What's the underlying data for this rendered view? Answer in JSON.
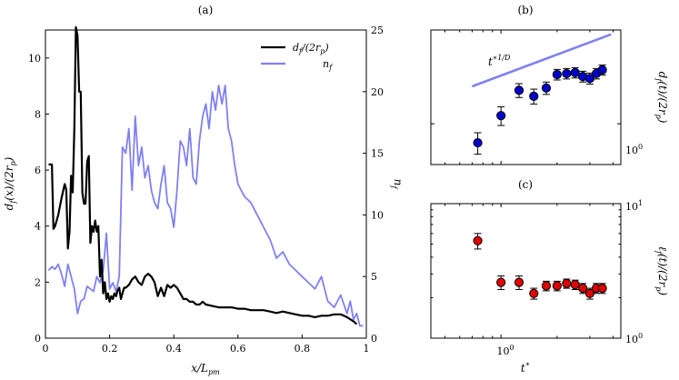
{
  "chart_data": [
    {
      "panel": "(a)",
      "type": "line",
      "xlabel": "x/L_pm",
      "ylabel": "d_f(x)/(2r_p)",
      "ylabel2": "n_f",
      "xlim": [
        0,
        1
      ],
      "ylim": [
        0,
        11
      ],
      "ylim2": [
        0,
        25
      ],
      "xticks": [
        0,
        0.2,
        0.4,
        0.6,
        0.8,
        1
      ],
      "xtick_labels": [
        "0",
        "0.2",
        "0.4",
        "0.6",
        "0.8",
        "1"
      ],
      "yticks": [
        0,
        2,
        4,
        6,
        8,
        10
      ],
      "ytick_labels": [
        "0",
        "2",
        "4",
        "6",
        "8",
        "10"
      ],
      "yticks2": [
        0,
        5,
        10,
        15,
        20,
        25
      ],
      "ytick2_labels": [
        "0",
        "5",
        "10",
        "15",
        "20",
        "25"
      ],
      "legend_position": "top-right",
      "series": [
        {
          "name": "d_f/(2r_p)",
          "axis": "left",
          "color": "#000000",
          "x": [
            0.01,
            0.02,
            0.025,
            0.03,
            0.04,
            0.05,
            0.06,
            0.065,
            0.07,
            0.075,
            0.08,
            0.085,
            0.09,
            0.095,
            0.1,
            0.105,
            0.11,
            0.115,
            0.12,
            0.125,
            0.13,
            0.135,
            0.14,
            0.145,
            0.15,
            0.155,
            0.16,
            0.165,
            0.17,
            0.175,
            0.18,
            0.185,
            0.19,
            0.195,
            0.2,
            0.205,
            0.21,
            0.215,
            0.22,
            0.225,
            0.23,
            0.235,
            0.24,
            0.245,
            0.25,
            0.26,
            0.27,
            0.28,
            0.29,
            0.3,
            0.31,
            0.32,
            0.33,
            0.34,
            0.35,
            0.36,
            0.37,
            0.38,
            0.39,
            0.4,
            0.41,
            0.42,
            0.43,
            0.44,
            0.45,
            0.46,
            0.47,
            0.48,
            0.49,
            0.5,
            0.52,
            0.54,
            0.56,
            0.58,
            0.6,
            0.62,
            0.64,
            0.66,
            0.68,
            0.7,
            0.72,
            0.74,
            0.76,
            0.78,
            0.8,
            0.82,
            0.84,
            0.86,
            0.88,
            0.9,
            0.92,
            0.94,
            0.96,
            0.97
          ],
          "values": [
            6.2,
            6.2,
            3.9,
            4.0,
            4.4,
            5.0,
            5.5,
            5.3,
            3.2,
            3.8,
            5.8,
            5.2,
            7.5,
            11.1,
            10.8,
            8.8,
            8.8,
            5.2,
            4.8,
            4.8,
            6.3,
            6.5,
            3.4,
            4.0,
            3.8,
            4.2,
            3.8,
            4.0,
            2.2,
            2.8,
            1.6,
            2.0,
            1.4,
            1.6,
            1.3,
            1.5,
            1.4,
            1.6,
            1.5,
            1.7,
            1.8,
            1.4,
            1.6,
            1.8,
            1.8,
            1.9,
            2.1,
            2.2,
            2.0,
            1.9,
            2.2,
            2.3,
            2.2,
            2.0,
            1.5,
            1.8,
            1.5,
            1.9,
            1.8,
            1.9,
            1.8,
            1.6,
            1.4,
            1.4,
            1.3,
            1.3,
            1.2,
            1.2,
            1.3,
            1.2,
            1.15,
            1.1,
            1.1,
            1.1,
            1.05,
            1.05,
            1.0,
            1.0,
            1.0,
            0.95,
            0.9,
            0.95,
            0.9,
            0.85,
            0.8,
            0.8,
            0.75,
            0.8,
            0.8,
            0.85,
            0.85,
            0.75,
            0.6,
            0.5
          ]
        },
        {
          "name": "n_f",
          "axis": "right",
          "color": "#8080f0",
          "x": [
            0.01,
            0.02,
            0.03,
            0.04,
            0.05,
            0.06,
            0.07,
            0.08,
            0.09,
            0.1,
            0.11,
            0.12,
            0.13,
            0.14,
            0.15,
            0.16,
            0.17,
            0.18,
            0.19,
            0.2,
            0.21,
            0.22,
            0.23,
            0.24,
            0.25,
            0.26,
            0.27,
            0.28,
            0.29,
            0.3,
            0.31,
            0.32,
            0.33,
            0.34,
            0.35,
            0.36,
            0.37,
            0.38,
            0.39,
            0.4,
            0.41,
            0.42,
            0.43,
            0.44,
            0.45,
            0.46,
            0.47,
            0.48,
            0.49,
            0.5,
            0.51,
            0.52,
            0.53,
            0.54,
            0.55,
            0.56,
            0.57,
            0.58,
            0.59,
            0.6,
            0.62,
            0.64,
            0.66,
            0.68,
            0.7,
            0.72,
            0.74,
            0.76,
            0.78,
            0.8,
            0.82,
            0.84,
            0.86,
            0.88,
            0.9,
            0.92,
            0.94,
            0.95,
            0.96,
            0.97,
            0.98,
            0.99
          ],
          "values": [
            5.5,
            5.8,
            5.6,
            6.0,
            5.2,
            4.2,
            6.0,
            5.0,
            4.0,
            2.0,
            3.0,
            3.2,
            4.2,
            4.0,
            3.8,
            5.0,
            4.5,
            5.5,
            8.5,
            4.0,
            4.5,
            3.8,
            5.0,
            15.5,
            15.0,
            17.0,
            12.0,
            18.0,
            14.0,
            15.5,
            13.0,
            14.0,
            12.0,
            11.0,
            10.5,
            12.5,
            14.0,
            11.0,
            10.5,
            9.0,
            12.0,
            16.0,
            15.5,
            14.0,
            17.0,
            13.0,
            12.5,
            16.0,
            18.0,
            19.0,
            17.0,
            20.0,
            18.5,
            20.5,
            19.0,
            20.5,
            17.0,
            16.0,
            14.0,
            12.5,
            11.5,
            11.0,
            10.0,
            9.0,
            8.0,
            6.5,
            7.0,
            6.0,
            5.5,
            5.0,
            4.5,
            4.0,
            5.0,
            3.0,
            2.5,
            3.5,
            2.0,
            3.0,
            1.5,
            2.0,
            1.0,
            1.0
          ]
        }
      ]
    },
    {
      "panel": "(b)",
      "type": "scatter",
      "ylabel": "d_f(t)/(2r_p)",
      "ytick_labels": [
        "10^0"
      ],
      "annotation": "t^{*1/D}",
      "marker_color": "#0000cc",
      "points": [
        {
          "x": 0.75,
          "y": 0.8,
          "err": 0.1
        },
        {
          "x": 1.0,
          "y": 1.1,
          "err": 0.12
        },
        {
          "x": 1.25,
          "y": 1.48,
          "err": 0.12
        },
        {
          "x": 1.5,
          "y": 1.38,
          "err": 0.12
        },
        {
          "x": 1.75,
          "y": 1.52,
          "err": 0.11
        },
        {
          "x": 2.0,
          "y": 1.78,
          "err": 0.11
        },
        {
          "x": 2.25,
          "y": 1.8,
          "err": 0.11
        },
        {
          "x": 2.5,
          "y": 1.82,
          "err": 0.11
        },
        {
          "x": 2.75,
          "y": 1.74,
          "err": 0.11
        },
        {
          "x": 3.0,
          "y": 1.7,
          "err": 0.11
        },
        {
          "x": 3.25,
          "y": 1.8,
          "err": 0.11
        },
        {
          "x": 3.5,
          "y": 1.88,
          "err": 0.11
        }
      ],
      "guide_line": {
        "from": [
          0.7,
          1.55
        ],
        "to": [
          3.9,
          2.85
        ]
      }
    },
    {
      "panel": "(c)",
      "type": "scatter",
      "xlabel": "t*",
      "ylabel": "ℓ_f(t)/(2r_p)",
      "xtick_labels": [
        "10^0"
      ],
      "ytick_labels": [
        "10^1",
        "10^0"
      ],
      "marker_color": "#e00000",
      "points": [
        {
          "x": 0.75,
          "y": 5.3,
          "err": 0.7
        },
        {
          "x": 1.0,
          "y": 2.6,
          "err": 0.3
        },
        {
          "x": 1.25,
          "y": 2.6,
          "err": 0.3
        },
        {
          "x": 1.5,
          "y": 2.15,
          "err": 0.2
        },
        {
          "x": 1.75,
          "y": 2.45,
          "err": 0.2
        },
        {
          "x": 2.0,
          "y": 2.45,
          "err": 0.2
        },
        {
          "x": 2.25,
          "y": 2.55,
          "err": 0.2
        },
        {
          "x": 2.5,
          "y": 2.5,
          "err": 0.2
        },
        {
          "x": 2.75,
          "y": 2.35,
          "err": 0.2
        },
        {
          "x": 3.0,
          "y": 2.15,
          "err": 0.2
        },
        {
          "x": 3.25,
          "y": 2.35,
          "err": 0.2
        },
        {
          "x": 3.5,
          "y": 2.35,
          "err": 0.2
        }
      ]
    }
  ]
}
